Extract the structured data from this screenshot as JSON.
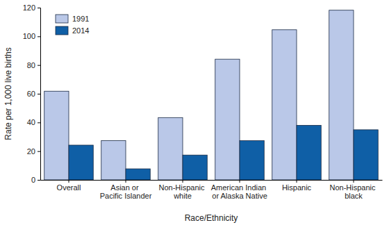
{
  "chart_data": {
    "type": "bar",
    "x_label": "Race/Ethnicity",
    "y_label": "Rate per 1,000 live births",
    "categories": [
      "Overall",
      "Asian or Pacific Islander",
      "Non-Hispanic white",
      "American Indian or Alaska Native",
      "Hispanic",
      "Non-Hispanic black"
    ],
    "series": [
      {
        "name": "1991",
        "color": "#bac8e8",
        "values": [
          61.8,
          27.3,
          43.4,
          84.1,
          104.6,
          118.2
        ]
      },
      {
        "name": "2014",
        "color": "#0f5fa6",
        "values": [
          24.2,
          7.7,
          17.3,
          27.3,
          38.0,
          34.9
        ]
      }
    ],
    "ylim": [
      0,
      120
    ],
    "yticks": [
      0,
      20,
      40,
      60,
      80,
      100,
      120
    ],
    "grid": false,
    "legend": "upper left"
  }
}
